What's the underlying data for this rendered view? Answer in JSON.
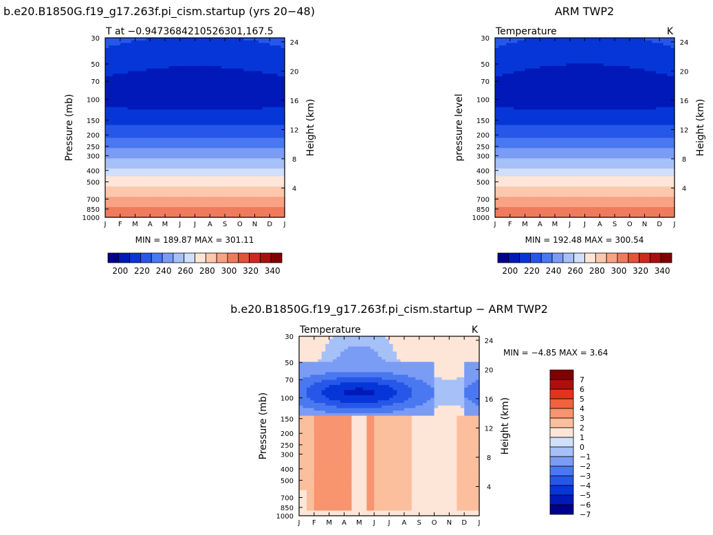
{
  "chart_data": [
    {
      "type": "heatmap",
      "title": "b.e20.B1850G.f19_g17.263f.pi_cism.startup (yrs 20−48)",
      "subtitle_left": "T at −0.9473684210526301,167.5",
      "subtitle_right": "",
      "ylabel": "Pressure  (mb)",
      "ylabel_right": "Height  (km)",
      "x_ticks": [
        "J",
        "F",
        "M",
        "A",
        "M",
        "J",
        "J",
        "A",
        "S",
        "O",
        "N",
        "D",
        "J"
      ],
      "y_ticks": [
        "30",
        "50",
        "70",
        "100",
        "150",
        "200",
        "250",
        "300",
        "400",
        "500",
        "700",
        "850",
        "1000"
      ],
      "height_ticks": [
        "24",
        "20",
        "16",
        "12",
        "8",
        "4"
      ],
      "stats": "MIN = 189.87  MAX = 301.11",
      "min": 189.87,
      "max": 301.11,
      "colorbar_labels": [
        "200",
        "220",
        "240",
        "260",
        "280",
        "300",
        "320",
        "340"
      ],
      "bands_top_to_bottom": [
        {
          "pressure_mb": 30,
          "temperature_k": 215
        },
        {
          "pressure_mb": 50,
          "temperature_k": 205
        },
        {
          "pressure_mb": 70,
          "temperature_k": 195
        },
        {
          "pressure_mb": 150,
          "temperature_k": 205
        },
        {
          "pressure_mb": 200,
          "temperature_k": 215
        },
        {
          "pressure_mb": 250,
          "temperature_k": 225
        },
        {
          "pressure_mb": 300,
          "temperature_k": 235
        },
        {
          "pressure_mb": 400,
          "temperature_k": 255
        },
        {
          "pressure_mb": 500,
          "temperature_k": 265
        },
        {
          "pressure_mb": 700,
          "temperature_k": 285
        },
        {
          "pressure_mb": 850,
          "temperature_k": 295
        },
        {
          "pressure_mb": 1000,
          "temperature_k": 300
        }
      ]
    },
    {
      "type": "heatmap",
      "title": "ARM TWP2",
      "subtitle_left": "Temperature",
      "subtitle_right": "K",
      "ylabel": "pressure level",
      "ylabel_right": "Height  (km)",
      "x_ticks": [
        "J",
        "F",
        "M",
        "A",
        "M",
        "J",
        "J",
        "A",
        "S",
        "O",
        "N",
        "D",
        "J"
      ],
      "y_ticks": [
        "30",
        "50",
        "70",
        "100",
        "150",
        "200",
        "250",
        "300",
        "400",
        "500",
        "700",
        "850",
        "1000"
      ],
      "height_ticks": [
        "24",
        "20",
        "16",
        "12",
        "8",
        "4"
      ],
      "stats": "MIN = 192.48  MAX = 300.54",
      "min": 192.48,
      "max": 300.54,
      "colorbar_labels": [
        "200",
        "220",
        "240",
        "260",
        "280",
        "300",
        "320",
        "340"
      ]
    },
    {
      "type": "heatmap",
      "title": "b.e20.B1850G.f19_g17.263f.pi_cism.startup − ARM TWP2",
      "subtitle_left": "Temperature",
      "subtitle_right": "K",
      "ylabel": "Pressure  (mb)",
      "ylabel_right": "Height  (km)",
      "x_ticks": [
        "J",
        "F",
        "M",
        "A",
        "M",
        "J",
        "J",
        "A",
        "S",
        "O",
        "N",
        "D",
        "J"
      ],
      "y_ticks": [
        "30",
        "50",
        "70",
        "100",
        "150",
        "200",
        "250",
        "300",
        "400",
        "500",
        "700",
        "850",
        "1000"
      ],
      "height_ticks": [
        "24",
        "20",
        "16",
        "12",
        "8",
        "4"
      ],
      "stats": "MIN =   −4.85  MAX =    3.64",
      "min": -4.85,
      "max": 3.64,
      "colorbar_labels": [
        "7",
        "6",
        "5",
        "4",
        "3",
        "2",
        "1",
        "0",
        "−1",
        "−2",
        "−3",
        "−4",
        "−5",
        "−6",
        "−7"
      ],
      "difference_regions": [
        {
          "pressure_mb_range": [
            30,
            50
          ],
          "difference_k": [
            -1,
            2
          ]
        },
        {
          "pressure_mb_range": [
            50,
            130
          ],
          "difference_k": [
            -5,
            -1
          ]
        },
        {
          "pressure_mb_range": [
            130,
            1000
          ],
          "difference_k": [
            1,
            4
          ]
        }
      ]
    }
  ],
  "colors": {
    "temperature_scale": [
      "#00008c",
      "#0019b8",
      "#0636d8",
      "#2657e8",
      "#4a78f0",
      "#7a9cf5",
      "#a6c0f8",
      "#d0e0fb",
      "#fde6d8",
      "#fcc8ad",
      "#f8a383",
      "#ef7b5d",
      "#e4533c",
      "#cc2a1c",
      "#a90f0d",
      "#800000"
    ],
    "difference_scale": [
      "#800000",
      "#b00e0c",
      "#e4321d",
      "#f2603d",
      "#f8946f",
      "#fbbf9d",
      "#fde6d8",
      "#d0e0fb",
      "#a6c0f8",
      "#7a9cf5",
      "#4a78f0",
      "#2657e8",
      "#0636d8",
      "#0019b8",
      "#00008c"
    ]
  }
}
